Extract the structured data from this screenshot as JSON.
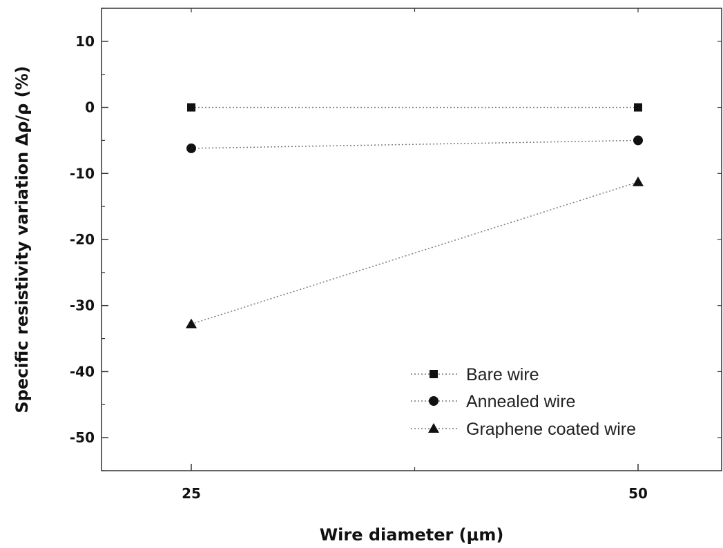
{
  "chart_data": {
    "type": "line",
    "title": "",
    "xlabel": "Wire diameter (μm)",
    "ylabel": "Specific resistivity variation Δρ/ρ (%)",
    "x": [
      25,
      50
    ],
    "xticks": [
      "25",
      "50"
    ],
    "yticks": [
      10,
      0,
      -10,
      -20,
      -30,
      -40,
      -50
    ],
    "ylim": [
      -55,
      15
    ],
    "grid": false,
    "legend_position": "bottom-right",
    "series": [
      {
        "name": "Bare wire",
        "marker": "square",
        "values": [
          0,
          0
        ]
      },
      {
        "name": "Annealed wire",
        "marker": "circle",
        "values": [
          -6.2,
          -5.0
        ]
      },
      {
        "name": "Graphene coated wire",
        "marker": "triangle",
        "values": [
          -32.8,
          -11.3
        ]
      }
    ]
  }
}
